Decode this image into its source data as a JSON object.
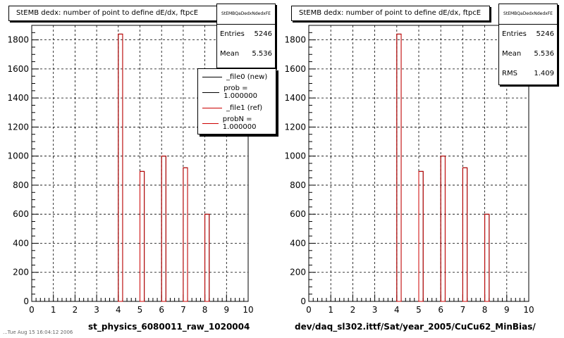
{
  "chart_data": [
    {
      "type": "bar",
      "title": "StEMB dedx: number of point to define dE/dx, ftpcE",
      "xlabel": "st_physics_6080011_raw_1020004",
      "ylabel": "",
      "xlim": [
        0,
        10
      ],
      "ylim": [
        0,
        1900
      ],
      "x_ticks": [
        "0",
        "1",
        "2",
        "3",
        "4",
        "5",
        "6",
        "7",
        "8",
        "9",
        "10"
      ],
      "y_ticks": [
        "0",
        "200",
        "400",
        "600",
        "800",
        "1000",
        "1200",
        "1400",
        "1600",
        "1800"
      ],
      "grid": true,
      "bin_width": 0.2,
      "bins": [
        {
          "x": 4.1,
          "value": 1840
        },
        {
          "x": 5.1,
          "value": 895
        },
        {
          "x": 6.1,
          "value": 1000
        },
        {
          "x": 7.1,
          "value": 920
        },
        {
          "x": 8.1,
          "value": 600
        }
      ],
      "stats": {
        "name": "StEMBQaDedxNdedxFE",
        "entries_label": "Entries",
        "entries": "5246",
        "mean_label": "Mean",
        "mean": "5.536"
      },
      "legend": {
        "placement": "top-right",
        "items": [
          {
            "label": "_file0 (new)",
            "color": "#000000"
          },
          {
            "label": "prob = 1.000000",
            "color": "#000000"
          },
          {
            "label": "_file1 (ref)",
            "color": "#cc0000"
          },
          {
            "label": "probN = 1.000000",
            "color": "#cc0000"
          }
        ]
      }
    },
    {
      "type": "bar",
      "title": "StEMB dedx: number of point to define dE/dx, ftpcE",
      "xlabel": "dev/daq_sl302.ittf/Sat/year_2005/CuCu62_MinBias/",
      "ylabel": "",
      "xlim": [
        0,
        10
      ],
      "ylim": [
        0,
        1900
      ],
      "x_ticks": [
        "0",
        "1",
        "2",
        "3",
        "4",
        "5",
        "6",
        "7",
        "8",
        "9",
        "10"
      ],
      "y_ticks": [
        "0",
        "200",
        "400",
        "600",
        "800",
        "1000",
        "1200",
        "1400",
        "1600",
        "1800"
      ],
      "grid": true,
      "bin_width": 0.2,
      "bins": [
        {
          "x": 4.1,
          "value": 1840
        },
        {
          "x": 5.1,
          "value": 895
        },
        {
          "x": 6.1,
          "value": 1000
        },
        {
          "x": 7.1,
          "value": 920
        },
        {
          "x": 8.1,
          "value": 600
        }
      ],
      "stats": {
        "name": "StEMBQaDedxNdedxFE",
        "entries_label": "Entries",
        "entries": "5246",
        "mean_label": "Mean",
        "mean": "5.536",
        "rms_label": "RMS",
        "rms": "1.409"
      }
    }
  ],
  "bar_color": "#cc0000",
  "footer": "...Tue Aug 15 16:04:12 2006"
}
